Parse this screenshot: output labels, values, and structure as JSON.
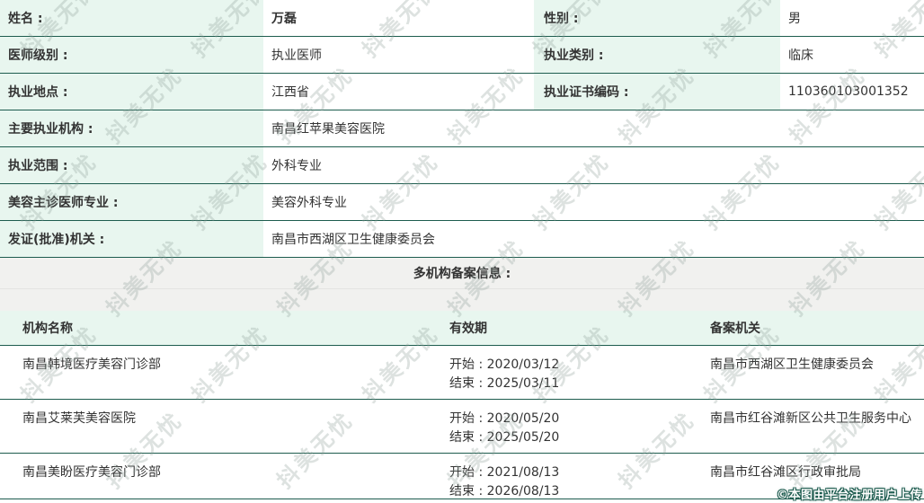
{
  "colors": {
    "mint": "#e8f6ef",
    "line": "#1d5c4e",
    "grayband": "#f1f1ef",
    "faint": "#e4e4e2",
    "text": "#333333"
  },
  "info": {
    "rows": [
      {
        "label1": "姓名 :",
        "value1": "万磊",
        "label2": "性别 :",
        "value2": "男"
      },
      {
        "label1": "医师级别 :",
        "value1": "执业医师",
        "label2": "执业类别 :",
        "value2": "临床"
      },
      {
        "label1": "执业地点 :",
        "value1": "江西省",
        "label2": "执业证书编码 :",
        "value2": "110360103001352"
      },
      {
        "label": "主要执业机构 :",
        "value": "南昌红苹果美容医院"
      },
      {
        "label": "执业范围 :",
        "value": "外科专业"
      },
      {
        "label": "美容主诊医师专业 :",
        "value": "美容外科专业"
      },
      {
        "label": "发证(批准)机关 :",
        "value": "南昌市西湖区卫生健康委员会"
      }
    ]
  },
  "section": {
    "title": "多机构备案信息 :"
  },
  "table": {
    "headers": {
      "name": "机构名称",
      "validity": "有效期",
      "authority": "备案机关"
    },
    "start_label": "开始 :",
    "end_label": "结束 :",
    "rows": [
      {
        "name": "南昌韩境医疗美容门诊部",
        "start": "2020/03/12",
        "end": "2025/03/11",
        "authority": "南昌市西湖区卫生健康委员会"
      },
      {
        "name": "南昌艾莱芙美容医院",
        "start": "2020/05/20",
        "end": "2025/05/20",
        "authority": "南昌市红谷滩新区公共卫生服务中心"
      },
      {
        "name": "南昌美盼医疗美容门诊部",
        "start": "2021/08/13",
        "end": "2026/08/13",
        "authority": "南昌市红谷滩区行政审批局"
      }
    ]
  },
  "watermark": {
    "text": "抖美无忧",
    "credit": "©本图由平台注册用户上传"
  }
}
